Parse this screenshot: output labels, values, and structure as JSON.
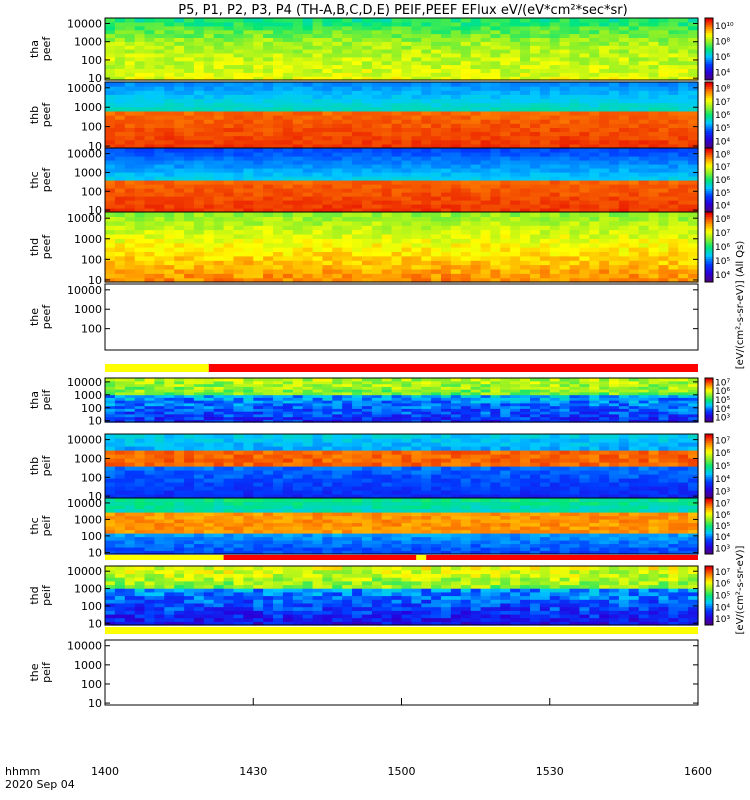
{
  "title": "P5, P1, P2, P3, P4 (TH-A,B,C,D,E) PEIF,PEEF EFlux eV/(eV*cm²*sec*sr)",
  "time_axis": {
    "labels": [
      "1400",
      "1430",
      "1500",
      "1530",
      "1600"
    ],
    "label_hhmm": "hhmm",
    "date": "2020 Sep 04"
  },
  "colorbar_unit_top": "[eV/(cm²-s-sr-eV)] (All Qs)",
  "colorbar_unit_bottom": "[eV/(cm²-s-sr-eV)]",
  "chart_data": {
    "type": "heatmap",
    "x_range_minutes_after_1400": [
      0,
      120
    ],
    "y_scale": "log",
    "panels": [
      {
        "label": "tha\npeef",
        "yticks": [
          "10",
          "100",
          "1000",
          "10000"
        ],
        "profile": "tha_e",
        "has_data": true,
        "cbar_ticks": [
          "10⁴",
          "10⁶",
          "10⁸",
          "10¹⁰"
        ],
        "cbar_min_exp": 3,
        "cbar_max_exp": 10
      },
      {
        "label": "thb\npeef",
        "yticks": [
          "10",
          "100",
          "1000",
          "10000"
        ],
        "profile": "thb_e",
        "has_data": true,
        "cbar_ticks": [
          "10⁴",
          "10⁵",
          "10⁶",
          "10⁷",
          "10⁸"
        ],
        "cbar_min_exp": 3,
        "cbar_max_exp": 9
      },
      {
        "label": "thc\npeef",
        "yticks": [
          "10",
          "100",
          "1000",
          "10000"
        ],
        "profile": "thc_e",
        "has_data": true,
        "cbar_ticks": [
          "10⁴",
          "10⁵",
          "10⁶",
          "10⁷",
          "10⁸"
        ],
        "cbar_min_exp": 3,
        "cbar_max_exp": 9
      },
      {
        "label": "thd\npeef",
        "yticks": [
          "10",
          "100",
          "1000",
          "10000"
        ],
        "profile": "thd_e",
        "has_data": true,
        "cbar_ticks": [
          "10⁴",
          "10⁵",
          "10⁶",
          "10⁷",
          "10⁸"
        ],
        "cbar_min_exp": 3,
        "cbar_max_exp": 9
      },
      {
        "label": "the\npeef",
        "yticks": [
          "100",
          "1000",
          "10000"
        ],
        "profile": "empty",
        "has_data": false,
        "cbar_ticks": [],
        "cbar_min_exp": 3,
        "cbar_max_exp": 9
      },
      {
        "label": "tha\npeif",
        "yticks": [
          "10",
          "100",
          "1000",
          "10000"
        ],
        "profile": "tha_i",
        "has_data": true,
        "cbar_ticks": [
          "10³",
          "10⁴",
          "10⁵",
          "10⁶",
          "10⁷"
        ],
        "cbar_min_exp": 3,
        "cbar_max_exp": 7
      },
      {
        "label": "thb\npeif",
        "yticks": [
          "10",
          "100",
          "1000",
          "10000"
        ],
        "profile": "thb_i",
        "has_data": true,
        "cbar_ticks": [
          "10³",
          "10⁴",
          "10⁵",
          "10⁶",
          "10⁷"
        ],
        "cbar_min_exp": 3,
        "cbar_max_exp": 7
      },
      {
        "label": "thc\npeif",
        "yticks": [
          "10",
          "100",
          "1000",
          "10000"
        ],
        "profile": "thc_i",
        "has_data": true,
        "cbar_ticks": [
          "10³",
          "10⁴",
          "10⁵",
          "10⁶",
          "10⁷"
        ],
        "cbar_min_exp": 3,
        "cbar_max_exp": 7
      },
      {
        "label": "thd\npeif",
        "yticks": [
          "10",
          "100",
          "1000",
          "10000"
        ],
        "profile": "thd_i",
        "has_data": true,
        "cbar_ticks": [
          "10³",
          "10⁴",
          "10⁵",
          "10⁶",
          "10⁷"
        ],
        "cbar_min_exp": 3,
        "cbar_max_exp": 7
      },
      {
        "label": "the\npeif",
        "yticks": [
          "10",
          "100",
          "1000",
          "10000"
        ],
        "profile": "empty",
        "has_data": false,
        "cbar_ticks": [],
        "cbar_min_exp": 3,
        "cbar_max_exp": 7
      }
    ],
    "mode_bars": [
      {
        "after_panel": 4,
        "segments": [
          {
            "from": 0,
            "to": 21,
            "color": "#ffff00"
          },
          {
            "from": 21,
            "to": 120,
            "color": "#ff0000"
          }
        ]
      },
      {
        "after_panel": 7,
        "segments": [
          {
            "from": 0,
            "to": 24,
            "color": "#ffff00"
          },
          {
            "from": 24,
            "to": 63,
            "color": "#ff0000"
          },
          {
            "from": 63,
            "to": 65,
            "color": "#ffff00"
          },
          {
            "from": 65,
            "to": 120,
            "color": "#ff0000"
          }
        ]
      },
      {
        "after_panel": 8,
        "segments": [
          {
            "from": 0,
            "to": 120,
            "color": "#ffff00"
          }
        ]
      }
    ]
  }
}
